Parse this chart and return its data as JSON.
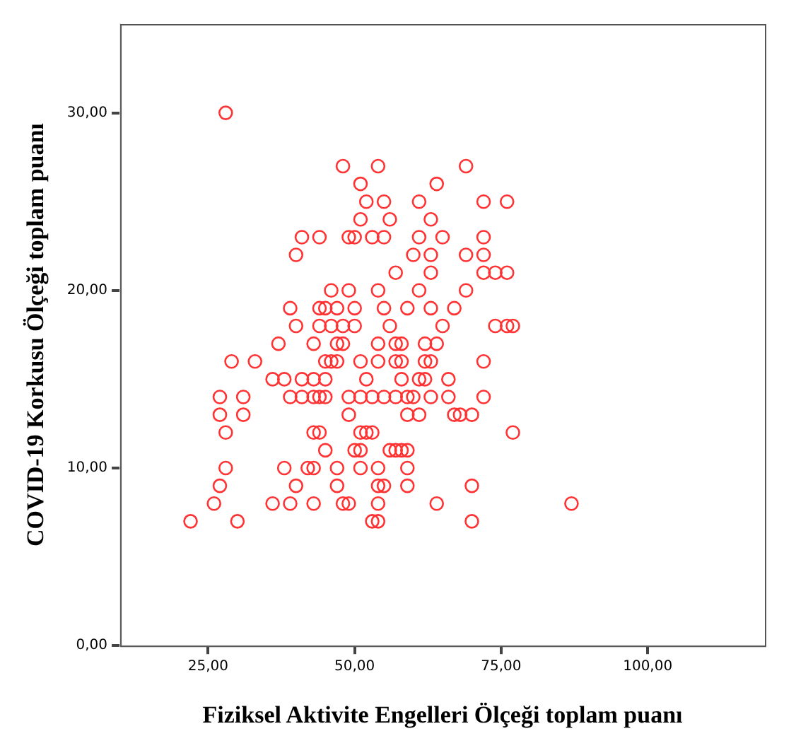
{
  "chart_data": {
    "type": "scatter",
    "xlabel": "Fiziksel Aktivite Engelleri Ölçeği toplam puanı",
    "ylabel": "COVID-19 Korkusu Ölçeği toplam puanı",
    "xlim": [
      10,
      120
    ],
    "ylim": [
      0,
      35
    ],
    "xticks": [
      {
        "value": 25,
        "label": "25,00"
      },
      {
        "value": 50,
        "label": "50,00"
      },
      {
        "value": 75,
        "label": "75,00"
      },
      {
        "value": 100,
        "label": "100,00"
      }
    ],
    "yticks": [
      {
        "value": 0,
        "label": "0,00"
      },
      {
        "value": 10,
        "label": "10,00"
      },
      {
        "value": 20,
        "label": "20,00"
      },
      {
        "value": 30,
        "label": "30,00"
      }
    ],
    "grid": false,
    "legend": false,
    "marker": "circle",
    "series": [
      {
        "color": "#ff3333",
        "x": [
          28,
          48,
          54,
          69,
          51,
          64,
          52,
          55,
          61,
          72,
          76,
          51,
          56,
          63,
          41,
          44,
          49,
          50,
          53,
          55,
          61,
          65,
          72,
          40,
          60,
          63,
          69,
          72,
          57,
          63,
          72,
          74,
          76,
          46,
          49,
          54,
          61,
          69,
          39,
          44,
          45,
          47,
          50,
          55,
          59,
          63,
          67,
          40,
          44,
          46,
          48,
          50,
          56,
          65,
          74,
          76,
          77,
          37,
          43,
          47,
          48,
          54,
          57,
          58,
          62,
          64,
          29,
          33,
          45,
          46,
          47,
          51,
          54,
          57,
          58,
          62,
          63,
          72,
          36,
          38,
          41,
          43,
          45,
          52,
          58,
          61,
          62,
          66,
          27,
          31,
          39,
          41,
          43,
          44,
          45,
          49,
          51,
          53,
          55,
          57,
          59,
          60,
          63,
          66,
          72,
          27,
          31,
          49,
          59,
          61,
          67,
          68,
          70,
          28,
          43,
          44,
          51,
          52,
          53,
          77,
          45,
          50,
          51,
          56,
          57,
          58,
          59,
          28,
          38,
          42,
          43,
          47,
          51,
          54,
          59,
          27,
          40,
          47,
          54,
          55,
          59,
          70,
          26,
          36,
          39,
          43,
          48,
          49,
          54,
          64,
          87,
          22,
          30,
          53,
          54,
          70
        ],
        "values": [
          30,
          27,
          27,
          27,
          26,
          26,
          25,
          25,
          25,
          25,
          25,
          24,
          24,
          24,
          23,
          23,
          23,
          23,
          23,
          23,
          23,
          23,
          23,
          22,
          22,
          22,
          22,
          22,
          21,
          21,
          21,
          21,
          21,
          20,
          20,
          20,
          20,
          20,
          19,
          19,
          19,
          19,
          19,
          19,
          19,
          19,
          19,
          18,
          18,
          18,
          18,
          18,
          18,
          18,
          18,
          18,
          18,
          17,
          17,
          17,
          17,
          17,
          17,
          17,
          17,
          17,
          16,
          16,
          16,
          16,
          16,
          16,
          16,
          16,
          16,
          16,
          16,
          16,
          15,
          15,
          15,
          15,
          15,
          15,
          15,
          15,
          15,
          15,
          14,
          14,
          14,
          14,
          14,
          14,
          14,
          14,
          14,
          14,
          14,
          14,
          14,
          14,
          14,
          14,
          14,
          13,
          13,
          13,
          13,
          13,
          13,
          13,
          13,
          12,
          12,
          12,
          12,
          12,
          12,
          12,
          11,
          11,
          11,
          11,
          11,
          11,
          11,
          10,
          10,
          10,
          10,
          10,
          10,
          10,
          10,
          9,
          9,
          9,
          9,
          9,
          9,
          9,
          8,
          8,
          8,
          8,
          8,
          8,
          8,
          8,
          8,
          7,
          7,
          7,
          7,
          7
        ]
      }
    ]
  }
}
